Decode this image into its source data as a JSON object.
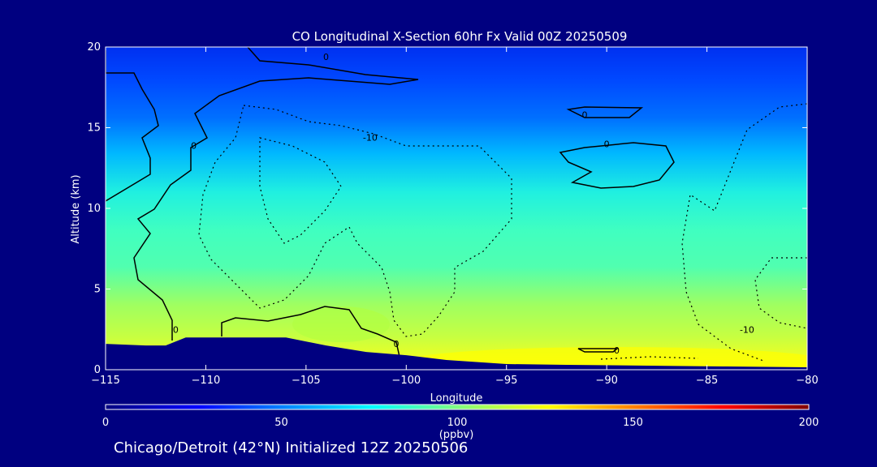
{
  "chart_data": {
    "type": "heatmap",
    "title": "CO Longitudinal X-Section 60hr  Fx Valid 00Z 20250509",
    "xlabel": "Longitude",
    "ylabel": "Altitude (km)",
    "xlim": [
      -115,
      -80
    ],
    "ylim": [
      0,
      20
    ],
    "x_ticks": [
      -115,
      -110,
      -105,
      -100,
      -95,
      -90,
      -85,
      -80
    ],
    "y_ticks": [
      0,
      5,
      10,
      15,
      20
    ],
    "x_tick_labels": [
      "−115",
      "−110",
      "−105",
      "−100",
      "−95",
      "−90",
      "−85",
      "−80"
    ],
    "y_tick_labels": [
      "0",
      "5",
      "10",
      "15",
      "20"
    ],
    "colorbar": {
      "label": "(ppbv)",
      "range": [
        0,
        200
      ],
      "ticks": [
        0,
        50,
        100,
        150,
        200
      ],
      "tick_labels": [
        "0",
        "50",
        "100",
        "150",
        "200"
      ],
      "colors": [
        "#000080",
        "#0000ff",
        "#0080ff",
        "#00ffff",
        "#80ff80",
        "#ffff00",
        "#ff8000",
        "#ff0000",
        "#800000"
      ]
    },
    "field_levels_ppbv": [
      {
        "alt_km": 20,
        "co_ppbv": 30
      },
      {
        "alt_km": 18,
        "co_ppbv": 35
      },
      {
        "alt_km": 16,
        "co_ppbv": 45
      },
      {
        "alt_km": 14,
        "co_ppbv": 60
      },
      {
        "alt_km": 12,
        "co_ppbv": 72
      },
      {
        "alt_km": 10,
        "co_ppbv": 85
      },
      {
        "alt_km": 8,
        "co_ppbv": 92
      },
      {
        "alt_km": 6,
        "co_ppbv": 96
      },
      {
        "alt_km": 4,
        "co_ppbv": 105
      },
      {
        "alt_km": 2,
        "co_ppbv": 115
      },
      {
        "alt_km": 0.5,
        "co_ppbv": 125
      }
    ],
    "terrain_km": [
      {
        "lon": -115,
        "alt": 1.6
      },
      {
        "lon": -113,
        "alt": 1.5
      },
      {
        "lon": -112,
        "alt": 1.5
      },
      {
        "lon": -111,
        "alt": 2.0
      },
      {
        "lon": -110,
        "alt": 2.0
      },
      {
        "lon": -108,
        "alt": 2.0
      },
      {
        "lon": -106,
        "alt": 2.0
      },
      {
        "lon": -104,
        "alt": 1.5
      },
      {
        "lon": -102,
        "alt": 1.1
      },
      {
        "lon": -100,
        "alt": 0.9
      },
      {
        "lon": -98,
        "alt": 0.6
      },
      {
        "lon": -95,
        "alt": 0.35
      },
      {
        "lon": -92,
        "alt": 0.3
      },
      {
        "lon": -88,
        "alt": 0.25
      },
      {
        "lon": -84,
        "alt": 0.2
      },
      {
        "lon": -80,
        "alt": 0.15
      }
    ],
    "contour_labels": [
      {
        "text": "0",
        "lon": -104,
        "alt": 19.4
      },
      {
        "text": "0",
        "lon": -110.6,
        "alt": 13.9
      },
      {
        "text": "-10",
        "lon": -101.8,
        "alt": 14.4
      },
      {
        "text": "0",
        "lon": -91.1,
        "alt": 15.8
      },
      {
        "text": "0",
        "lon": -90,
        "alt": 14.0
      },
      {
        "text": "0",
        "lon": -111.5,
        "alt": 2.5
      },
      {
        "text": "0",
        "lon": -100.5,
        "alt": 1.6
      },
      {
        "text": "0",
        "lon": -89.5,
        "alt": 1.2
      },
      {
        "text": "-10",
        "lon": -83,
        "alt": 2.5
      }
    ]
  },
  "footer": "Chicago/Detroit (42°N) Initialized 12Z 20250506"
}
